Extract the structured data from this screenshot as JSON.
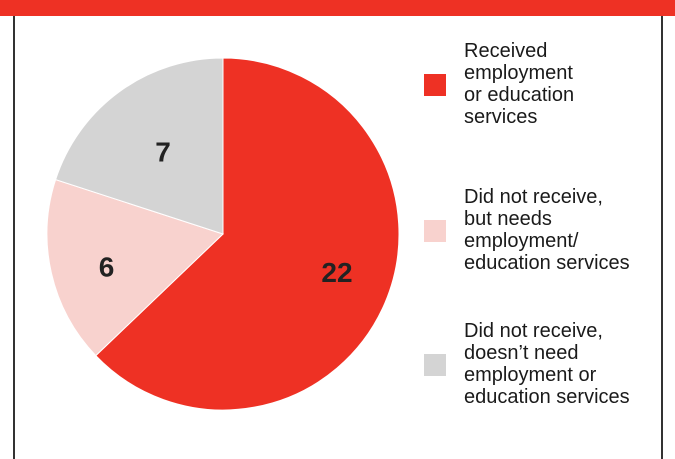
{
  "colors": {
    "bar": "#ee3124",
    "received": "#ee3124",
    "needs": "#f8d2ce",
    "doesnt_need": "#d4d4d4",
    "frame": "#333333"
  },
  "chart_data": {
    "type": "pie",
    "title": "",
    "slices": [
      {
        "label": "Received employment or education services",
        "value": 22,
        "color": "#ee3124"
      },
      {
        "label": "Did not receive, but needs employment/ education services",
        "value": 6,
        "color": "#f8d2ce"
      },
      {
        "label": "Did not receive, doesn’t need employment or education services",
        "value": 7,
        "color": "#d4d4d4"
      }
    ],
    "start": "12 o'clock",
    "direction": "clockwise",
    "legend_position": "right"
  },
  "legend": {
    "items": [
      {
        "text": "Received\nemployment\nor education\nservices",
        "color": "#ee3124"
      },
      {
        "text": "Did not receive,\nbut needs\nemployment/\neducation services",
        "color": "#f8d2ce"
      },
      {
        "text": "Did not receive,\ndoesn’t need\nemployment or\neducation services",
        "color": "#d4d4d4"
      }
    ]
  }
}
